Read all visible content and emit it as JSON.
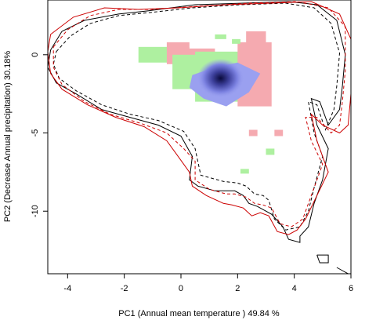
{
  "chart_data": {
    "type": "scatter",
    "title": "",
    "xlabel": "PC1 (Annual mean temperature ) 49.84 %",
    "ylabel": "PC2 (Decrease Annual precipitation) 30.18%",
    "xlim": [
      -4.7,
      6.0
    ],
    "ylim": [
      -14.0,
      3.5
    ],
    "x_ticks": [
      -4,
      -2,
      0,
      2,
      4,
      6
    ],
    "y_ticks": [
      0,
      -5,
      -10
    ],
    "grid": false,
    "legend": "none",
    "colors": {
      "native_niche": "#9aa0f0",
      "native_core": "#0a0a3c",
      "overlap_green": "#aef0a0",
      "overlap_pink": "#f5aab0",
      "contour_black": "#000000",
      "contour_red": "#cc0000"
    },
    "density_core": {
      "x": 1.4,
      "y": -1.5
    },
    "patches": [
      {
        "color": "overlap_green",
        "x": [
          -1.5,
          0.3
        ],
        "y": [
          -0.5,
          0.5
        ]
      },
      {
        "color": "overlap_pink",
        "x": [
          -0.5,
          0.3
        ],
        "y": [
          -0.6,
          0.8
        ]
      },
      {
        "color": "overlap_pink",
        "x": [
          0.2,
          1.2
        ],
        "y": [
          -0.3,
          0.4
        ]
      },
      {
        "color": "overlap_green",
        "x": [
          -0.3,
          0.8
        ],
        "y": [
          -2.2,
          0.0
        ]
      },
      {
        "color": "overlap_green",
        "x": [
          0.5,
          2.3
        ],
        "y": [
          -3.0,
          0.2
        ]
      },
      {
        "color": "overlap_pink",
        "x": [
          2.0,
          3.2
        ],
        "y": [
          -3.3,
          0.8
        ]
      },
      {
        "color": "overlap_pink",
        "x": [
          2.3,
          3.0
        ],
        "y": [
          -1.0,
          1.5
        ]
      },
      {
        "color": "overlap_green",
        "x": [
          1.2,
          1.6
        ],
        "y": [
          1.0,
          1.3
        ]
      },
      {
        "color": "overlap_green",
        "x": [
          1.8,
          2.1
        ],
        "y": [
          0.7,
          1.0
        ]
      },
      {
        "color": "overlap_pink",
        "x": [
          2.6,
          2.9
        ],
        "y": [
          0.8,
          1.1
        ]
      },
      {
        "color": "overlap_pink",
        "x": [
          2.4,
          2.7
        ],
        "y": [
          -4.8,
          -5.2
        ]
      },
      {
        "color": "overlap_pink",
        "x": [
          3.3,
          3.6
        ],
        "y": [
          -4.8,
          -5.2
        ]
      },
      {
        "color": "overlap_green",
        "x": [
          3.0,
          3.3
        ],
        "y": [
          -6.0,
          -6.4
        ]
      },
      {
        "color": "overlap_green",
        "x": [
          2.1,
          2.4
        ],
        "y": [
          -7.3,
          -7.6
        ]
      }
    ],
    "series": [
      {
        "color": "contour_black",
        "dash": "solid",
        "points": [
          [
            -4.2,
            1.5
          ],
          [
            -3.4,
            2.2
          ],
          [
            -2.2,
            2.6
          ],
          [
            -1.2,
            2.8
          ],
          [
            0.5,
            3.2
          ],
          [
            2.2,
            3.3
          ],
          [
            3.8,
            3.4
          ],
          [
            4.8,
            3.2
          ],
          [
            5.5,
            2.2
          ],
          [
            5.8,
            0.0
          ],
          [
            5.7,
            -2.0
          ],
          [
            5.6,
            -3.5
          ],
          [
            5.2,
            -4.5
          ],
          [
            4.9,
            -3.0
          ],
          [
            4.6,
            -2.8
          ],
          [
            4.8,
            -4.5
          ],
          [
            5.2,
            -6.0
          ],
          [
            5.0,
            -8.0
          ],
          [
            4.7,
            -9.5
          ],
          [
            4.5,
            -11.0
          ],
          [
            4.2,
            -11.6
          ],
          [
            4.2,
            -12.0
          ],
          [
            3.8,
            -11.8
          ],
          [
            3.6,
            -11.0
          ],
          [
            3.2,
            -10.2
          ],
          [
            3.0,
            -10.0
          ],
          [
            2.7,
            -9.7
          ],
          [
            2.4,
            -9.5
          ],
          [
            2.2,
            -9.0
          ],
          [
            1.9,
            -8.7
          ],
          [
            1.7,
            -8.7
          ],
          [
            1.2,
            -8.7
          ],
          [
            0.6,
            -8.4
          ],
          [
            0.3,
            -8.0
          ],
          [
            0.4,
            -6.5
          ],
          [
            0.0,
            -5.2
          ],
          [
            -0.8,
            -4.5
          ],
          [
            -1.8,
            -4.0
          ],
          [
            -2.8,
            -3.5
          ],
          [
            -3.7,
            -2.5
          ],
          [
            -4.4,
            -1.8
          ],
          [
            -4.7,
            -0.8
          ],
          [
            -4.6,
            0.3
          ],
          [
            -4.2,
            1.5
          ]
        ]
      },
      {
        "color": "contour_black",
        "dash": "dashed",
        "points": [
          [
            -4.4,
            0.2
          ],
          [
            -3.9,
            1.2
          ],
          [
            -3.2,
            2.0
          ],
          [
            -2.2,
            2.5
          ],
          [
            -1.1,
            2.7
          ],
          [
            0.4,
            3.0
          ],
          [
            2.1,
            3.2
          ],
          [
            3.7,
            3.3
          ],
          [
            4.7,
            3.0
          ],
          [
            5.3,
            2.0
          ],
          [
            5.6,
            0.1
          ],
          [
            5.5,
            -2.0
          ],
          [
            5.4,
            -3.5
          ],
          [
            5.1,
            -4.8
          ],
          [
            4.8,
            -3.2
          ],
          [
            4.5,
            -3.0
          ],
          [
            4.7,
            -5.0
          ],
          [
            5.0,
            -6.5
          ],
          [
            4.7,
            -8.5
          ],
          [
            4.5,
            -10.0
          ],
          [
            4.2,
            -11.0
          ],
          [
            3.7,
            -11.2
          ],
          [
            3.3,
            -10.5
          ],
          [
            3.1,
            -9.3
          ],
          [
            2.9,
            -9.0
          ],
          [
            2.6,
            -8.9
          ],
          [
            2.3,
            -8.4
          ],
          [
            2.0,
            -8.2
          ],
          [
            1.5,
            -8.1
          ],
          [
            0.7,
            -7.7
          ],
          [
            0.5,
            -6.0
          ],
          [
            0.1,
            -4.9
          ],
          [
            -0.8,
            -4.2
          ],
          [
            -1.8,
            -3.8
          ],
          [
            -2.8,
            -3.2
          ],
          [
            -3.7,
            -2.3
          ],
          [
            -4.3,
            -1.5
          ],
          [
            -4.5,
            -0.6
          ],
          [
            -4.4,
            0.2
          ]
        ]
      },
      {
        "color": "contour_red",
        "dash": "solid",
        "points": [
          [
            -4.6,
            1.3
          ],
          [
            -3.8,
            2.4
          ],
          [
            -2.7,
            3.0
          ],
          [
            -1.5,
            2.9
          ],
          [
            -0.1,
            3.0
          ],
          [
            1.6,
            3.2
          ],
          [
            3.2,
            3.3
          ],
          [
            4.6,
            3.4
          ],
          [
            5.6,
            2.6
          ],
          [
            6.0,
            1.0
          ],
          [
            6.0,
            -2.5
          ],
          [
            5.9,
            -4.5
          ],
          [
            5.6,
            -5.0
          ],
          [
            5.0,
            -4.5
          ],
          [
            4.6,
            -3.8
          ],
          [
            4.8,
            -5.5
          ],
          [
            5.2,
            -7.5
          ],
          [
            4.8,
            -9.0
          ],
          [
            4.4,
            -10.5
          ],
          [
            4.1,
            -11.2
          ],
          [
            3.8,
            -11.5
          ],
          [
            3.4,
            -11.3
          ],
          [
            3.1,
            -10.3
          ],
          [
            2.8,
            -10.1
          ],
          [
            2.5,
            -10.3
          ],
          [
            2.2,
            -9.8
          ],
          [
            1.8,
            -9.6
          ],
          [
            1.5,
            -9.5
          ],
          [
            0.9,
            -9.0
          ],
          [
            0.4,
            -8.4
          ],
          [
            0.3,
            -7.5
          ],
          [
            -0.1,
            -6.5
          ],
          [
            -0.5,
            -5.5
          ],
          [
            -1.3,
            -4.6
          ],
          [
            -2.3,
            -4.0
          ],
          [
            -3.3,
            -3.2
          ],
          [
            -4.2,
            -2.2
          ],
          [
            -4.6,
            -1.2
          ],
          [
            -4.7,
            0.2
          ],
          [
            -4.6,
            1.3
          ]
        ]
      },
      {
        "color": "contour_red",
        "dash": "dashed",
        "points": [
          [
            -4.5,
            0.5
          ],
          [
            -4.0,
            1.6
          ],
          [
            -3.2,
            2.5
          ],
          [
            -2.2,
            2.9
          ],
          [
            -1.0,
            2.9
          ],
          [
            0.6,
            3.1
          ],
          [
            2.4,
            3.3
          ],
          [
            4.1,
            3.4
          ],
          [
            5.2,
            3.0
          ],
          [
            5.8,
            1.8
          ],
          [
            5.8,
            -1.0
          ],
          [
            5.7,
            -3.0
          ],
          [
            5.6,
            -4.5
          ],
          [
            5.3,
            -5.0
          ],
          [
            4.8,
            -4.0
          ],
          [
            4.4,
            -4.0
          ],
          [
            4.6,
            -5.5
          ],
          [
            5.0,
            -7.0
          ],
          [
            4.6,
            -9.0
          ],
          [
            4.3,
            -10.5
          ],
          [
            3.9,
            -11.0
          ],
          [
            3.5,
            -10.8
          ],
          [
            3.2,
            -9.8
          ],
          [
            2.9,
            -9.6
          ],
          [
            2.6,
            -9.5
          ],
          [
            2.3,
            -9.1
          ],
          [
            1.9,
            -8.9
          ],
          [
            1.6,
            -8.9
          ],
          [
            1.0,
            -8.6
          ],
          [
            0.5,
            -8.0
          ],
          [
            0.5,
            -6.8
          ],
          [
            0.1,
            -6.0
          ],
          [
            -0.5,
            -5.0
          ],
          [
            -1.4,
            -4.4
          ],
          [
            -2.5,
            -3.8
          ],
          [
            -3.4,
            -3.0
          ],
          [
            -4.2,
            -1.9
          ],
          [
            -4.5,
            -0.8
          ],
          [
            -4.5,
            0.5
          ]
        ]
      },
      {
        "color": "contour_black",
        "dash": "solid",
        "points": [
          [
            4.8,
            -12.8
          ],
          [
            5.2,
            -12.8
          ],
          [
            5.2,
            -13.3
          ],
          [
            4.9,
            -13.3
          ],
          [
            4.8,
            -12.8
          ]
        ]
      },
      {
        "color": "contour_black",
        "dash": "solid",
        "points": [
          [
            5.5,
            -13.6
          ],
          [
            5.7,
            -13.8
          ],
          [
            5.9,
            -14.0
          ]
        ]
      }
    ]
  }
}
